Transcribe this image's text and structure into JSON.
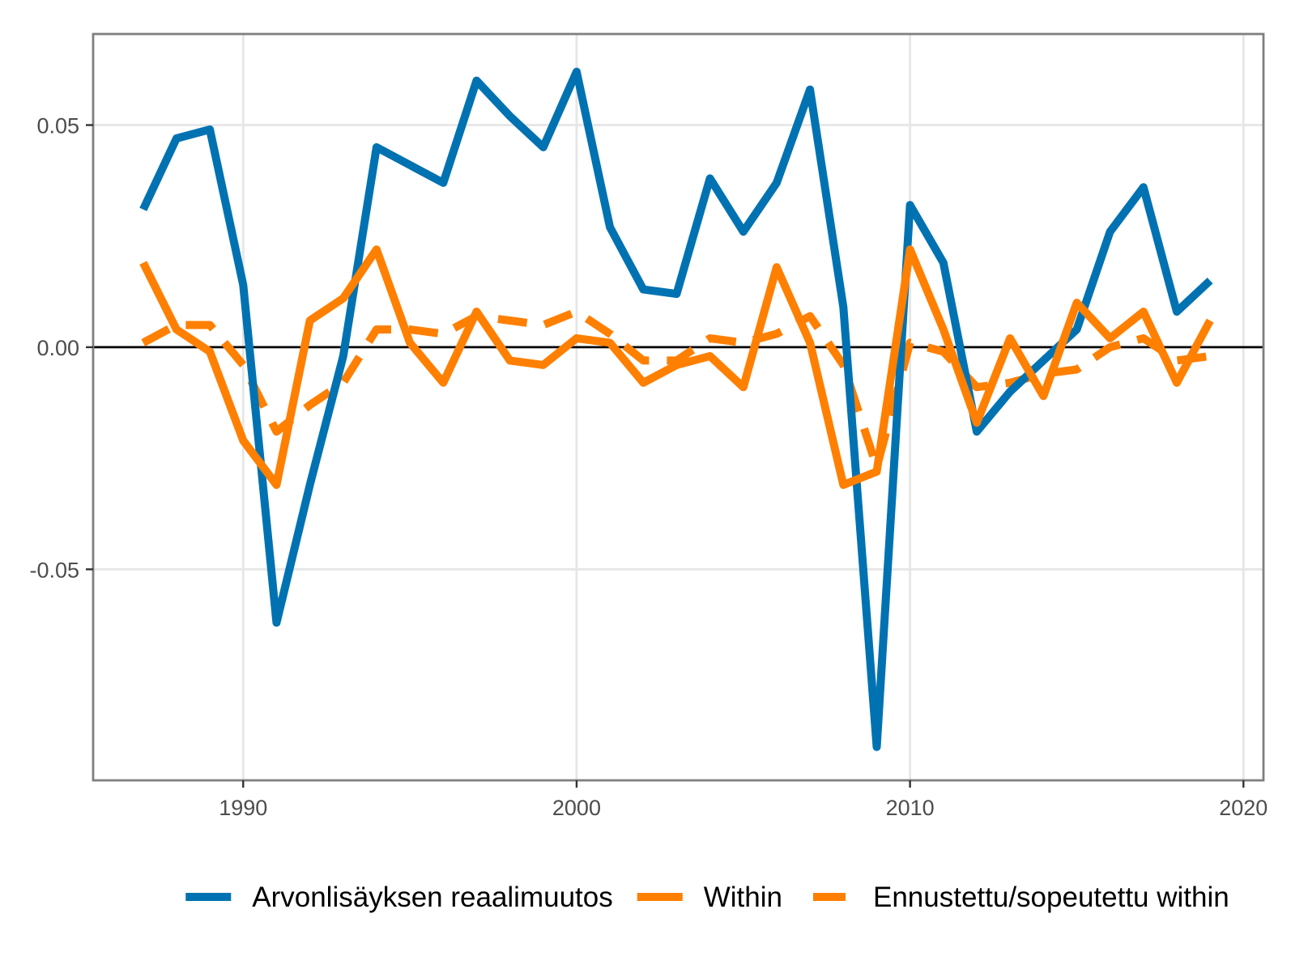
{
  "chart_data": {
    "type": "line",
    "title": "",
    "xlabel": "",
    "ylabel": "",
    "xlim": [
      1985.5,
      2020.6
    ],
    "ylim": [
      -0.0975,
      0.0705
    ],
    "x_ticks": [
      1990,
      2000,
      2010,
      2020
    ],
    "x_tick_labels": [
      "1990",
      "2000",
      "2010",
      "2020"
    ],
    "y_ticks": [
      0.05,
      0.0,
      -0.05
    ],
    "y_tick_labels": [
      "0.05",
      "0.00",
      "-0.05"
    ],
    "grid": true,
    "zero_line": true,
    "legend_position": "bottom",
    "x": [
      1987,
      1988,
      1989,
      1990,
      1991,
      1992,
      1993,
      1994,
      1995,
      1996,
      1997,
      1998,
      1999,
      2000,
      2001,
      2002,
      2003,
      2004,
      2005,
      2006,
      2007,
      2008,
      2009,
      2010,
      2011,
      2012,
      2013,
      2014,
      2015,
      2016,
      2017,
      2018,
      2019
    ],
    "series": [
      {
        "name": "Arvonlisäyksen reaalimuutos",
        "color": "#0072B2",
        "style": "solid",
        "values": [
          0.031,
          0.047,
          0.049,
          0.014,
          -0.062,
          -0.031,
          -0.002,
          0.045,
          0.041,
          0.037,
          0.06,
          0.052,
          0.045,
          0.062,
          0.027,
          0.013,
          0.012,
          0.038,
          0.026,
          0.037,
          0.058,
          0.009,
          -0.09,
          0.032,
          0.019,
          -0.019,
          -0.01,
          -0.003,
          0.004,
          0.026,
          0.036,
          0.008,
          0.015
        ]
      },
      {
        "name": "Within",
        "color": "#FF7F00",
        "style": "solid",
        "values": [
          0.019,
          0.004,
          -0.001,
          -0.021,
          -0.031,
          0.006,
          0.011,
          0.022,
          0.001,
          -0.008,
          0.008,
          -0.003,
          -0.004,
          0.002,
          0.001,
          -0.008,
          -0.004,
          -0.002,
          -0.009,
          0.018,
          0.001,
          -0.031,
          -0.028,
          0.022,
          0.004,
          -0.017,
          0.002,
          -0.011,
          0.01,
          0.002,
          0.008,
          -0.008,
          0.006
        ]
      },
      {
        "name": "Ennustettu/sopeutettu within",
        "color": "#FF7F00",
        "style": "dashed",
        "values": [
          0.001,
          0.005,
          0.005,
          -0.004,
          -0.019,
          -0.013,
          -0.008,
          0.004,
          0.004,
          0.003,
          0.007,
          0.006,
          0.005,
          0.008,
          0.003,
          -0.003,
          -0.003,
          0.002,
          0.001,
          0.003,
          0.007,
          -0.004,
          -0.027,
          0.001,
          -0.001,
          -0.009,
          -0.008,
          -0.006,
          -0.005,
          0.0,
          0.002,
          -0.003,
          -0.002
        ]
      }
    ]
  }
}
